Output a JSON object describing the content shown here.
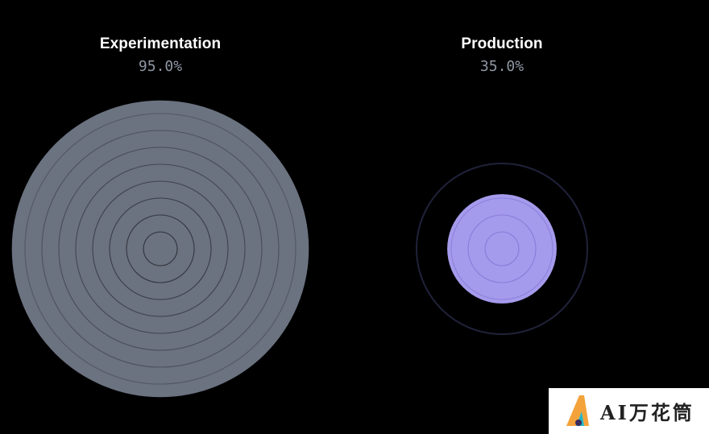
{
  "chart_data": {
    "type": "radial-gauge",
    "max_percent": 100,
    "items": [
      {
        "title": "Experimentation",
        "value_label": "95.0%",
        "value": 95.0,
        "fill_color": "#6b7280",
        "ring_color": "#2b2f36"
      },
      {
        "title": "Production",
        "value_label": "35.0%",
        "value": 35.0,
        "fill_color": "#a59bec",
        "ring_color": "#8479d6"
      }
    ]
  },
  "watermark": {
    "text": "AI万花筒"
  },
  "colors": {
    "background": "#000000",
    "title": "#ffffff",
    "value_text": "#8f97a3",
    "frame": "#20223a"
  }
}
